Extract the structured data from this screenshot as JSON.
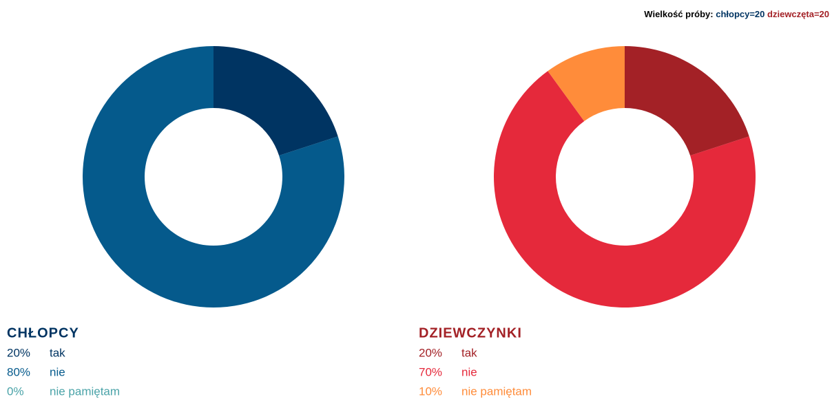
{
  "sample_size": {
    "label": "Wielkość próby:",
    "boys": "chłopcy=20",
    "girls": "dziewczęta=20"
  },
  "chart_data": [
    {
      "type": "pie",
      "title": "CHŁOPCY",
      "title_color": "#003462",
      "categories": [
        "tak",
        "nie",
        "nie pamiętam"
      ],
      "values": [
        20,
        80,
        0
      ],
      "value_labels": [
        "20%",
        "80%",
        "0%"
      ],
      "colors": [
        "#003462",
        "#055a8c",
        "#4aa3a8"
      ]
    },
    {
      "type": "pie",
      "title": "DZIEWCZYNKI",
      "title_color": "#a32126",
      "categories": [
        "tak",
        "nie",
        "nie pamiętam"
      ],
      "values": [
        20,
        70,
        10
      ],
      "value_labels": [
        "20%",
        "70%",
        "10%"
      ],
      "colors": [
        "#a32126",
        "#e5293b",
        "#ff8c3a"
      ]
    }
  ]
}
